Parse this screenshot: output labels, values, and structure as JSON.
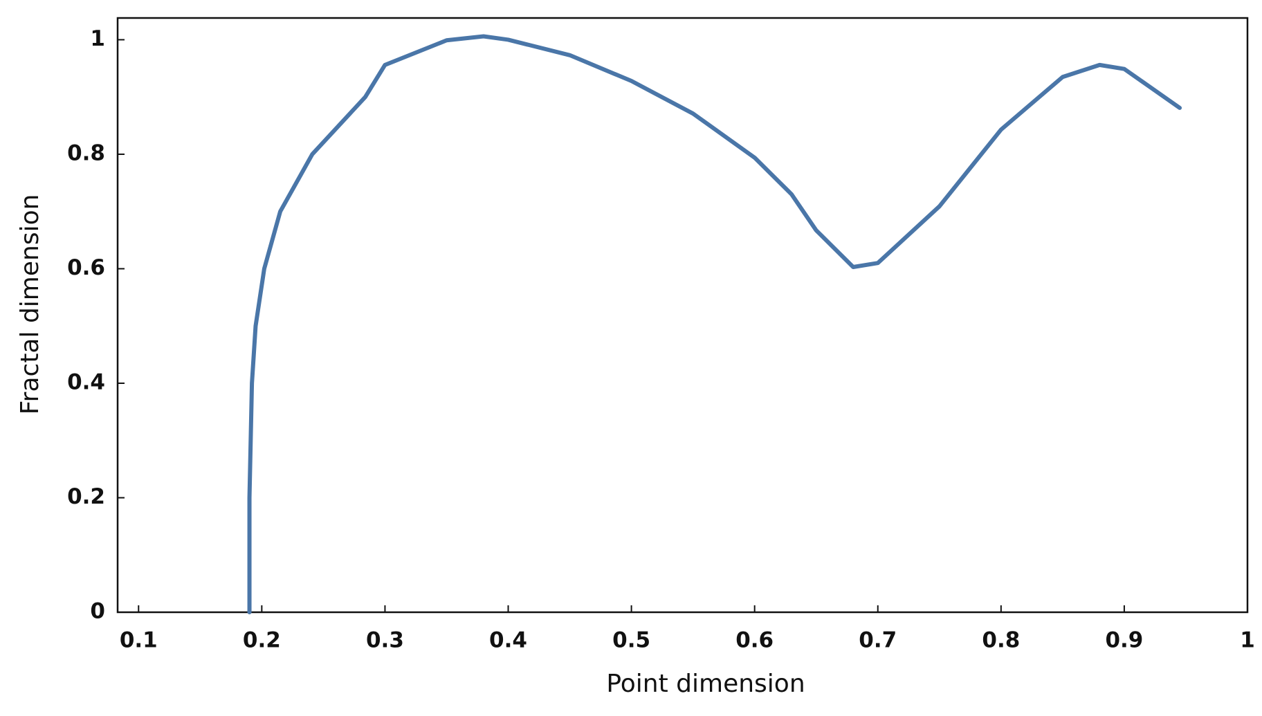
{
  "chart_data": {
    "type": "line",
    "xlabel": "Point dimension",
    "ylabel": "Fractal dimension",
    "x": [
      0.19,
      0.19,
      0.19,
      0.191,
      0.192,
      0.195,
      0.202,
      0.215,
      0.241,
      0.284,
      0.3,
      0.35,
      0.38,
      0.4,
      0.45,
      0.5,
      0.55,
      0.6,
      0.63,
      0.65,
      0.68,
      0.7,
      0.75,
      0.8,
      0.85,
      0.88,
      0.9,
      0.945
    ],
    "series": [
      {
        "color": "#4a76a8",
        "values": [
          0,
          0.1,
          0.2,
          0.3,
          0.4,
          0.5,
          0.6,
          0.7,
          0.8,
          0.9,
          0.956,
          0.999,
          1.006,
          1.0,
          0.973,
          0.928,
          0.871,
          0.794,
          0.73,
          0.667,
          0.603,
          0.61,
          0.709,
          0.843,
          0.935,
          0.956,
          0.949,
          0.881
        ]
      }
    ],
    "xlim": [
      0.083,
      1.0
    ],
    "ylim": [
      0,
      1.038
    ],
    "xticks": [
      0.1,
      0.2,
      0.3,
      0.4,
      0.5,
      0.6,
      0.7,
      0.8,
      0.9,
      1
    ],
    "yticks": [
      0,
      0.2,
      0.4,
      0.6,
      0.8,
      1
    ],
    "grid": false
  }
}
